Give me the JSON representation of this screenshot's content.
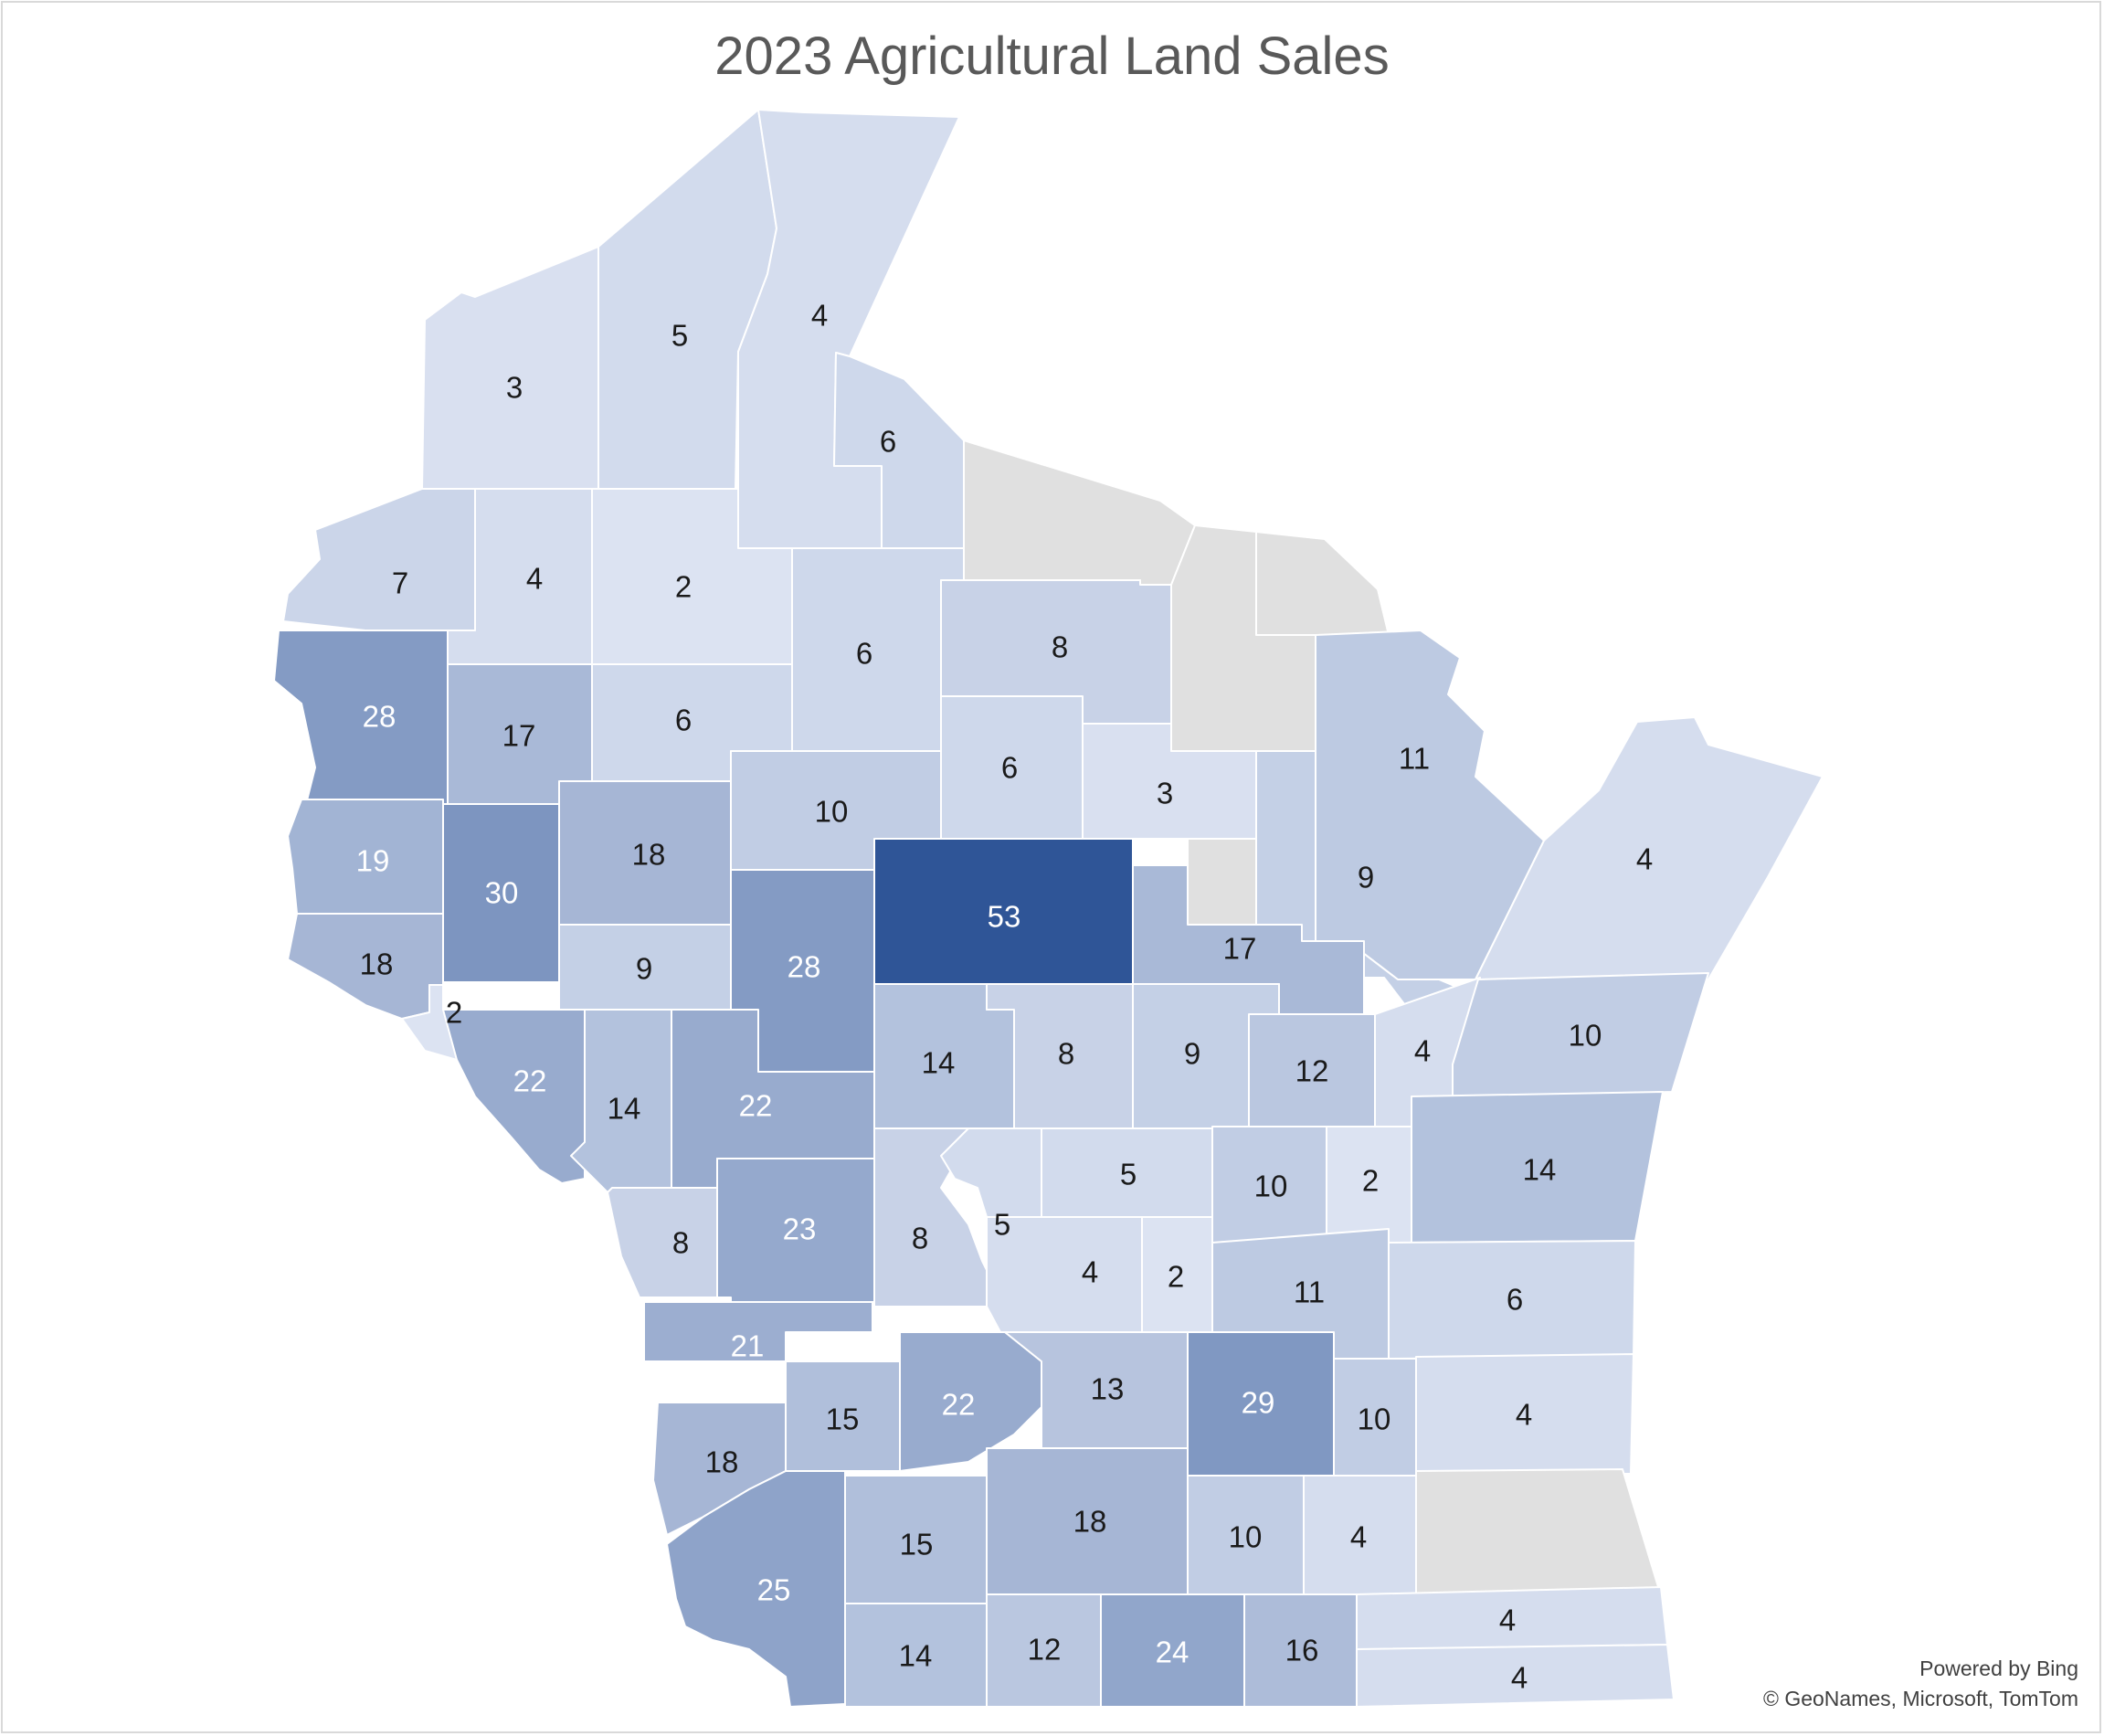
{
  "title": "2023 Agricultural Land Sales",
  "attribution": {
    "line1": "Powered by Bing",
    "line2": "© GeoNames, Microsoft, TomTom"
  },
  "colors": {
    "scale_low": "#dce3f2",
    "scale_high": "#2f5597",
    "no_data": "#e0e0e0",
    "label_dark": "#1a1a1a",
    "label_light": "#ffffff"
  },
  "map_data": {
    "type": "choropleth",
    "region": "Wisconsin",
    "value_min": 2,
    "value_max": 53,
    "counties": [
      {
        "id": "douglas",
        "value": 3
      },
      {
        "id": "bayfield",
        "value": 5
      },
      {
        "id": "ashland",
        "value": 4
      },
      {
        "id": "iron",
        "value": 6
      },
      {
        "id": "vilas",
        "value": null
      },
      {
        "id": "florence",
        "value": null
      },
      {
        "id": "burnett",
        "value": 7
      },
      {
        "id": "washburn",
        "value": 4
      },
      {
        "id": "sawyer",
        "value": 2
      },
      {
        "id": "price",
        "value": 6
      },
      {
        "id": "oneida",
        "value": 8
      },
      {
        "id": "forest",
        "value": null
      },
      {
        "id": "marinette",
        "value": 11
      },
      {
        "id": "polk",
        "value": 28
      },
      {
        "id": "barron",
        "value": 17
      },
      {
        "id": "rusk",
        "value": 6
      },
      {
        "id": "taylor",
        "value": 10
      },
      {
        "id": "lincoln",
        "value": 6
      },
      {
        "id": "langlade",
        "value": 3
      },
      {
        "id": "menominee",
        "value": null
      },
      {
        "id": "oconto",
        "value": 9
      },
      {
        "id": "door",
        "value": 4
      },
      {
        "id": "st-croix",
        "value": 19
      },
      {
        "id": "dunn",
        "value": 30
      },
      {
        "id": "chippewa",
        "value": 18
      },
      {
        "id": "clark",
        "value": 28
      },
      {
        "id": "marathon",
        "value": 53
      },
      {
        "id": "shawano",
        "value": 17
      },
      {
        "id": "pierce",
        "value": 18
      },
      {
        "id": "pepin",
        "value": 2
      },
      {
        "id": "eau-claire",
        "value": 9
      },
      {
        "id": "buffalo",
        "value": 22
      },
      {
        "id": "trempealeau",
        "value": 14
      },
      {
        "id": "jackson",
        "value": 22
      },
      {
        "id": "wood",
        "value": 14
      },
      {
        "id": "portage",
        "value": 8
      },
      {
        "id": "waupaca",
        "value": 9
      },
      {
        "id": "outagamie",
        "value": 12
      },
      {
        "id": "brown",
        "value": 4
      },
      {
        "id": "kewaunee",
        "value": 10
      },
      {
        "id": "la-crosse",
        "value": 8
      },
      {
        "id": "monroe",
        "value": 23
      },
      {
        "id": "juneau",
        "value": 8
      },
      {
        "id": "adams",
        "value": 5
      },
      {
        "id": "waushara",
        "value": 5
      },
      {
        "id": "winnebago",
        "value": 10
      },
      {
        "id": "calumet",
        "value": 2
      },
      {
        "id": "manitowoc",
        "value": 14
      },
      {
        "id": "marquette",
        "value": 4
      },
      {
        "id": "green-lake",
        "value": 2
      },
      {
        "id": "fond-du-lac",
        "value": 11
      },
      {
        "id": "sheboygan",
        "value": 6
      },
      {
        "id": "vernon",
        "value": 21
      },
      {
        "id": "richland",
        "value": 15
      },
      {
        "id": "sauk",
        "value": 22
      },
      {
        "id": "columbia",
        "value": 13
      },
      {
        "id": "dodge",
        "value": 29
      },
      {
        "id": "washington",
        "value": 10
      },
      {
        "id": "ozaukee",
        "value": 4
      },
      {
        "id": "crawford",
        "value": 18
      },
      {
        "id": "grant",
        "value": 25
      },
      {
        "id": "iowa",
        "value": 15
      },
      {
        "id": "dane",
        "value": 18
      },
      {
        "id": "jefferson",
        "value": 10
      },
      {
        "id": "waukesha",
        "value": 4
      },
      {
        "id": "milwaukee",
        "value": null
      },
      {
        "id": "lafayette",
        "value": 14
      },
      {
        "id": "green",
        "value": 12
      },
      {
        "id": "rock",
        "value": 24
      },
      {
        "id": "walworth",
        "value": 16
      },
      {
        "id": "racine",
        "value": 4
      },
      {
        "id": "kenosha",
        "value": 4
      }
    ]
  }
}
